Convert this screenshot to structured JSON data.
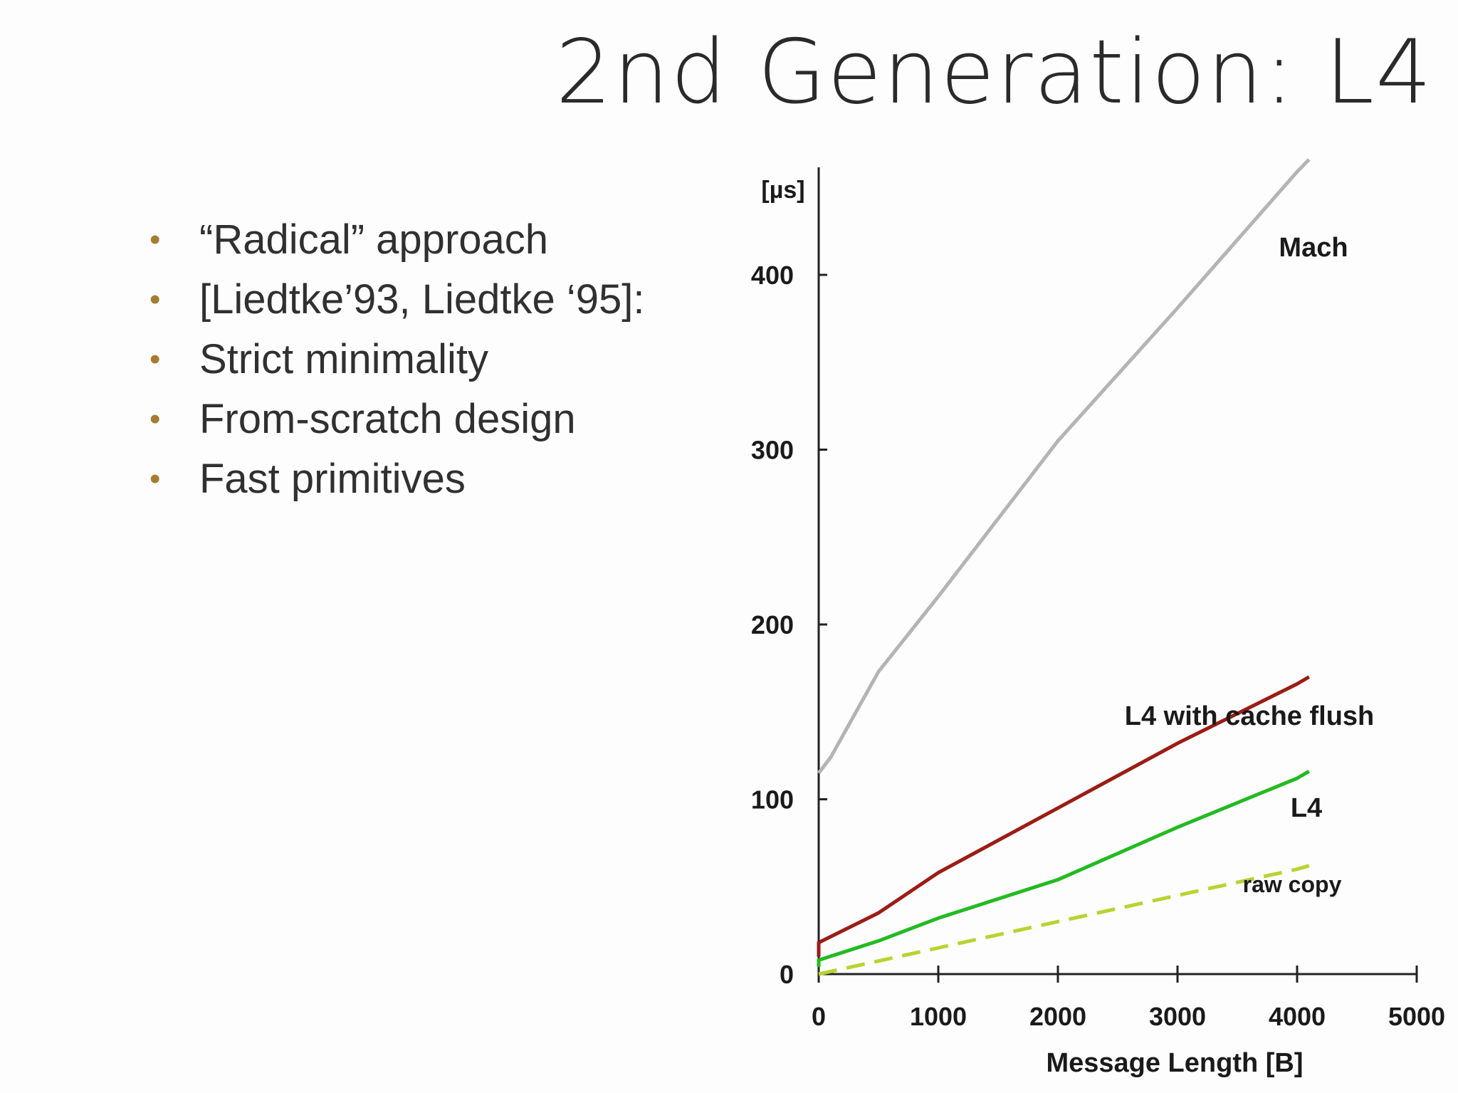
{
  "slide": {
    "title": "2nd Generation: L4",
    "bullets": [
      "“Radical” approach",
      "[Liedtke’93, Liedtke ‘95]:",
      "Strict minimality",
      "From-scratch design",
      "Fast primitives"
    ],
    "bullet_color": "#a67c2e"
  },
  "chart_data": {
    "type": "line",
    "title": "",
    "xlabel": "Message Length [B]",
    "ylabel": "[µs]",
    "xlim": [
      0,
      5000
    ],
    "ylim": [
      0,
      460
    ],
    "x_ticks": [
      0,
      1000,
      2000,
      3000,
      4000,
      5000
    ],
    "y_ticks": [
      0,
      100,
      200,
      300,
      400
    ],
    "grid": false,
    "legend": "inline labels",
    "series": [
      {
        "name": "Mach",
        "color": "#b4b4b4",
        "dashed": false,
        "x": [
          0,
          100,
          500,
          1000,
          2000,
          3000,
          4000,
          4100
        ],
        "y": [
          115,
          124,
          173,
          216,
          305,
          381,
          459,
          466
        ]
      },
      {
        "name": "L4 with cache flush",
        "color": "#9c1c14",
        "dashed": false,
        "x": [
          0,
          0,
          500,
          1000,
          2000,
          3000,
          4000,
          4100
        ],
        "y": [
          10,
          18,
          35,
          58,
          95,
          132,
          166,
          170
        ]
      },
      {
        "name": "L4",
        "color": "#22bb22",
        "dashed": false,
        "x": [
          0,
          0,
          500,
          1000,
          2000,
          3000,
          4000,
          4100
        ],
        "y": [
          4,
          8,
          19,
          32,
          54,
          84,
          112,
          116
        ]
      },
      {
        "name": "raw copy",
        "color": "#b7d430",
        "dashed": true,
        "x": [
          0,
          1000,
          2000,
          3000,
          4000,
          4100
        ],
        "y": [
          0,
          15,
          30,
          45,
          60,
          62
        ]
      }
    ]
  }
}
